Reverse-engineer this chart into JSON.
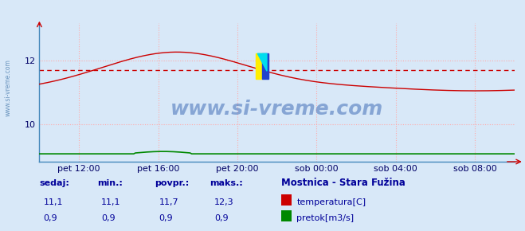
{
  "title": "Mostnica - Stara Fužina",
  "bg_color": "#d8e8f8",
  "plot_bg_color": "#d8e8f8",
  "grid_color": "#ffaaaa",
  "x_tick_labels": [
    "pet 12:00",
    "pet 16:00",
    "pet 20:00",
    "sob 00:00",
    "sob 04:00",
    "sob 08:00"
  ],
  "x_tick_positions": [
    0.0833,
    0.25,
    0.4167,
    0.5833,
    0.75,
    0.9167
  ],
  "y_ticks": [
    10,
    12
  ],
  "ylim": [
    8.8,
    13.2
  ],
  "xlim": [
    0.0,
    1.0
  ],
  "temp_color": "#cc0000",
  "flow_color": "#008800",
  "avg_color": "#cc0000",
  "watermark_text": "www.si-vreme.com",
  "watermark_color": "#2255aa",
  "watermark_alpha": 0.45,
  "left_label": "www.si-vreme.com",
  "left_label_color": "#4477aa",
  "legend_title": "Mostnica - Stara Fužina",
  "legend_title_color": "#000099",
  "legend_items": [
    {
      "label": "temperatura[C]",
      "color": "#cc0000"
    },
    {
      "label": "pretok[m3/s]",
      "color": "#008800"
    }
  ],
  "stats_labels": [
    "sedaj:",
    "min.:",
    "povpr.:",
    "maks.:"
  ],
  "stats_temp": [
    "11,1",
    "11,1",
    "11,7",
    "12,3"
  ],
  "stats_flow": [
    "0,9",
    "0,9",
    "0,9",
    "0,9"
  ],
  "stats_color": "#000099",
  "n_points": 288,
  "temp_avg": 11.7,
  "temp_min": 11.1,
  "temp_max": 12.3,
  "flow_val": 0.9,
  "title_color": "#000099",
  "title_fontsize": 11,
  "axis_color": "#4488bb",
  "tick_color": "#000066"
}
